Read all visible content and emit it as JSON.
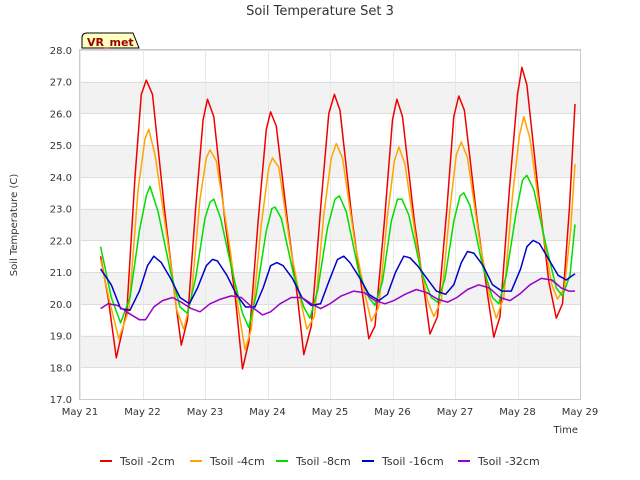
{
  "chart_data": {
    "type": "line",
    "title": "Soil Temperature Set 3",
    "xlabel": "Time",
    "ylabel": "Soil Temperature (C)",
    "badge": "VR_met",
    "ylim": [
      17.0,
      28.0
    ],
    "xlim": [
      "May 21",
      "May 29"
    ],
    "y_ticks": [
      "17.0",
      "18.0",
      "19.0",
      "20.0",
      "21.0",
      "22.0",
      "23.0",
      "24.0",
      "25.0",
      "26.0",
      "27.0",
      "28.0"
    ],
    "x_ticks": [
      "May 21",
      "May 22",
      "May 23",
      "May 24",
      "May 25",
      "May 26",
      "May 27",
      "May 28",
      "May 29"
    ],
    "grid": "horizontal alternating bands",
    "legend_position": "bottom",
    "x_unit": "days since May 21 00:00",
    "series": [
      {
        "name": "Tsoil -2cm",
        "color": "#ee0000",
        "points": [
          [
            0.33,
            21.5
          ],
          [
            0.45,
            20.2
          ],
          [
            0.58,
            18.3
          ],
          [
            0.75,
            19.8
          ],
          [
            0.88,
            24.0
          ],
          [
            0.98,
            26.6
          ],
          [
            1.06,
            27.05
          ],
          [
            1.16,
            26.6
          ],
          [
            1.35,
            23.0
          ],
          [
            1.5,
            20.5
          ],
          [
            1.62,
            18.7
          ],
          [
            1.72,
            19.5
          ],
          [
            1.85,
            23.0
          ],
          [
            1.97,
            25.8
          ],
          [
            2.04,
            26.45
          ],
          [
            2.14,
            25.9
          ],
          [
            2.32,
            22.6
          ],
          [
            2.48,
            20.3
          ],
          [
            2.6,
            17.95
          ],
          [
            2.7,
            18.8
          ],
          [
            2.85,
            22.6
          ],
          [
            2.98,
            25.5
          ],
          [
            3.05,
            26.05
          ],
          [
            3.14,
            25.6
          ],
          [
            3.32,
            22.6
          ],
          [
            3.48,
            20.2
          ],
          [
            3.58,
            18.4
          ],
          [
            3.7,
            19.3
          ],
          [
            3.85,
            23.0
          ],
          [
            3.98,
            26.0
          ],
          [
            4.07,
            26.6
          ],
          [
            4.16,
            26.1
          ],
          [
            4.35,
            22.7
          ],
          [
            4.52,
            20.3
          ],
          [
            4.62,
            18.9
          ],
          [
            4.72,
            19.3
          ],
          [
            4.87,
            22.6
          ],
          [
            5.0,
            25.8
          ],
          [
            5.07,
            26.45
          ],
          [
            5.16,
            25.9
          ],
          [
            5.35,
            22.6
          ],
          [
            5.5,
            20.5
          ],
          [
            5.6,
            19.05
          ],
          [
            5.72,
            19.6
          ],
          [
            5.87,
            23.0
          ],
          [
            5.98,
            25.9
          ],
          [
            6.06,
            26.55
          ],
          [
            6.15,
            26.1
          ],
          [
            6.35,
            22.7
          ],
          [
            6.52,
            20.3
          ],
          [
            6.62,
            18.95
          ],
          [
            6.72,
            19.6
          ],
          [
            6.87,
            23.6
          ],
          [
            7.0,
            26.6
          ],
          [
            7.07,
            27.45
          ],
          [
            7.15,
            26.9
          ],
          [
            7.33,
            23.6
          ],
          [
            7.5,
            20.7
          ],
          [
            7.62,
            19.55
          ],
          [
            7.72,
            20.0
          ],
          [
            7.83,
            23.0
          ],
          [
            7.92,
            26.3
          ]
        ]
      },
      {
        "name": "Tsoil -4cm",
        "color": "#ffa500",
        "points": [
          [
            0.33,
            21.4
          ],
          [
            0.47,
            20.1
          ],
          [
            0.62,
            18.9
          ],
          [
            0.78,
            19.8
          ],
          [
            0.93,
            23.6
          ],
          [
            1.04,
            25.2
          ],
          [
            1.1,
            25.5
          ],
          [
            1.2,
            24.7
          ],
          [
            1.4,
            22.0
          ],
          [
            1.55,
            19.8
          ],
          [
            1.66,
            19.2
          ],
          [
            1.78,
            20.2
          ],
          [
            1.92,
            23.3
          ],
          [
            2.02,
            24.6
          ],
          [
            2.08,
            24.85
          ],
          [
            2.18,
            24.5
          ],
          [
            2.38,
            22.0
          ],
          [
            2.52,
            20.0
          ],
          [
            2.64,
            18.55
          ],
          [
            2.74,
            19.2
          ],
          [
            2.9,
            22.5
          ],
          [
            3.02,
            24.3
          ],
          [
            3.08,
            24.6
          ],
          [
            3.18,
            24.3
          ],
          [
            3.38,
            21.6
          ],
          [
            3.53,
            20.1
          ],
          [
            3.63,
            19.2
          ],
          [
            3.75,
            19.6
          ],
          [
            3.9,
            22.8
          ],
          [
            4.02,
            24.6
          ],
          [
            4.1,
            25.05
          ],
          [
            4.2,
            24.6
          ],
          [
            4.4,
            21.9
          ],
          [
            4.56,
            20.3
          ],
          [
            4.66,
            19.45
          ],
          [
            4.78,
            19.9
          ],
          [
            4.92,
            22.8
          ],
          [
            5.03,
            24.5
          ],
          [
            5.1,
            24.95
          ],
          [
            5.2,
            24.4
          ],
          [
            5.4,
            21.7
          ],
          [
            5.56,
            20.1
          ],
          [
            5.66,
            19.6
          ],
          [
            5.78,
            20.1
          ],
          [
            5.92,
            23.0
          ],
          [
            6.02,
            24.7
          ],
          [
            6.1,
            25.1
          ],
          [
            6.2,
            24.6
          ],
          [
            6.4,
            21.9
          ],
          [
            6.56,
            20.2
          ],
          [
            6.66,
            19.55
          ],
          [
            6.78,
            20.2
          ],
          [
            6.92,
            23.4
          ],
          [
            7.03,
            25.3
          ],
          [
            7.1,
            25.9
          ],
          [
            7.2,
            25.2
          ],
          [
            7.4,
            22.3
          ],
          [
            7.55,
            20.6
          ],
          [
            7.64,
            20.15
          ],
          [
            7.75,
            20.5
          ],
          [
            7.85,
            22.3
          ],
          [
            7.92,
            24.4
          ]
        ]
      },
      {
        "name": "Tsoil -8cm",
        "color": "#00dd00",
        "points": [
          [
            0.33,
            21.8
          ],
          [
            0.5,
            20.2
          ],
          [
            0.65,
            19.4
          ],
          [
            0.8,
            20.2
          ],
          [
            0.95,
            22.3
          ],
          [
            1.06,
            23.4
          ],
          [
            1.12,
            23.7
          ],
          [
            1.25,
            22.9
          ],
          [
            1.45,
            21.0
          ],
          [
            1.6,
            19.9
          ],
          [
            1.72,
            19.7
          ],
          [
            1.85,
            20.8
          ],
          [
            2.0,
            22.7
          ],
          [
            2.08,
            23.2
          ],
          [
            2.14,
            23.3
          ],
          [
            2.25,
            22.7
          ],
          [
            2.45,
            20.9
          ],
          [
            2.6,
            19.7
          ],
          [
            2.7,
            19.25
          ],
          [
            2.82,
            20.3
          ],
          [
            2.98,
            22.3
          ],
          [
            3.07,
            23.0
          ],
          [
            3.12,
            23.05
          ],
          [
            3.22,
            22.7
          ],
          [
            3.42,
            20.9
          ],
          [
            3.58,
            19.9
          ],
          [
            3.68,
            19.55
          ],
          [
            3.8,
            20.4
          ],
          [
            3.96,
            22.4
          ],
          [
            4.08,
            23.3
          ],
          [
            4.15,
            23.4
          ],
          [
            4.26,
            22.9
          ],
          [
            4.46,
            21.0
          ],
          [
            4.62,
            20.2
          ],
          [
            4.72,
            19.95
          ],
          [
            4.84,
            20.7
          ],
          [
            4.98,
            22.6
          ],
          [
            5.08,
            23.3
          ],
          [
            5.15,
            23.3
          ],
          [
            5.26,
            22.8
          ],
          [
            5.46,
            21.0
          ],
          [
            5.62,
            20.2
          ],
          [
            5.72,
            20.05
          ],
          [
            5.84,
            20.8
          ],
          [
            5.98,
            22.6
          ],
          [
            6.08,
            23.4
          ],
          [
            6.14,
            23.5
          ],
          [
            6.24,
            23.1
          ],
          [
            6.44,
            21.2
          ],
          [
            6.6,
            20.2
          ],
          [
            6.7,
            20.0
          ],
          [
            6.82,
            20.9
          ],
          [
            6.98,
            22.9
          ],
          [
            7.08,
            23.9
          ],
          [
            7.15,
            24.05
          ],
          [
            7.26,
            23.6
          ],
          [
            7.46,
            21.8
          ],
          [
            7.62,
            20.5
          ],
          [
            7.72,
            20.25
          ],
          [
            7.84,
            20.9
          ],
          [
            7.92,
            22.5
          ]
        ]
      },
      {
        "name": "Tsoil -16cm",
        "color": "#0000cc",
        "points": [
          [
            0.33,
            21.1
          ],
          [
            0.5,
            20.6
          ],
          [
            0.65,
            19.85
          ],
          [
            0.8,
            19.8
          ],
          [
            0.95,
            20.4
          ],
          [
            1.08,
            21.2
          ],
          [
            1.18,
            21.5
          ],
          [
            1.3,
            21.3
          ],
          [
            1.45,
            20.8
          ],
          [
            1.6,
            20.2
          ],
          [
            1.75,
            20.0
          ],
          [
            1.88,
            20.5
          ],
          [
            2.02,
            21.2
          ],
          [
            2.12,
            21.4
          ],
          [
            2.2,
            21.35
          ],
          [
            2.35,
            20.9
          ],
          [
            2.5,
            20.3
          ],
          [
            2.65,
            19.9
          ],
          [
            2.8,
            19.9
          ],
          [
            2.93,
            20.5
          ],
          [
            3.05,
            21.2
          ],
          [
            3.15,
            21.3
          ],
          [
            3.25,
            21.2
          ],
          [
            3.4,
            20.8
          ],
          [
            3.55,
            20.2
          ],
          [
            3.7,
            19.95
          ],
          [
            3.85,
            20.0
          ],
          [
            3.98,
            20.7
          ],
          [
            4.12,
            21.4
          ],
          [
            4.22,
            21.5
          ],
          [
            4.32,
            21.3
          ],
          [
            4.48,
            20.8
          ],
          [
            4.62,
            20.3
          ],
          [
            4.78,
            20.1
          ],
          [
            4.92,
            20.3
          ],
          [
            5.05,
            21.0
          ],
          [
            5.18,
            21.5
          ],
          [
            5.28,
            21.45
          ],
          [
            5.4,
            21.2
          ],
          [
            5.55,
            20.8
          ],
          [
            5.7,
            20.4
          ],
          [
            5.85,
            20.3
          ],
          [
            5.98,
            20.6
          ],
          [
            6.1,
            21.3
          ],
          [
            6.2,
            21.65
          ],
          [
            6.3,
            21.6
          ],
          [
            6.45,
            21.2
          ],
          [
            6.6,
            20.6
          ],
          [
            6.75,
            20.4
          ],
          [
            6.9,
            20.4
          ],
          [
            7.05,
            21.1
          ],
          [
            7.15,
            21.8
          ],
          [
            7.25,
            22.0
          ],
          [
            7.35,
            21.9
          ],
          [
            7.5,
            21.4
          ],
          [
            7.65,
            20.9
          ],
          [
            7.78,
            20.75
          ],
          [
            7.92,
            20.95
          ]
        ]
      },
      {
        "name": "Tsoil -32cm",
        "color": "#9900cc",
        "points": [
          [
            0.33,
            19.85
          ],
          [
            0.45,
            20.0
          ],
          [
            0.6,
            19.95
          ],
          [
            0.78,
            19.7
          ],
          [
            0.95,
            19.5
          ],
          [
            1.05,
            19.5
          ],
          [
            1.18,
            19.9
          ],
          [
            1.32,
            20.1
          ],
          [
            1.48,
            20.2
          ],
          [
            1.62,
            20.05
          ],
          [
            1.78,
            19.85
          ],
          [
            1.92,
            19.75
          ],
          [
            2.08,
            20.0
          ],
          [
            2.25,
            20.15
          ],
          [
            2.42,
            20.25
          ],
          [
            2.58,
            20.2
          ],
          [
            2.75,
            19.9
          ],
          [
            2.92,
            19.65
          ],
          [
            3.05,
            19.75
          ],
          [
            3.2,
            20.0
          ],
          [
            3.38,
            20.2
          ],
          [
            3.55,
            20.2
          ],
          [
            3.7,
            20.0
          ],
          [
            3.85,
            19.85
          ],
          [
            4.0,
            20.0
          ],
          [
            4.18,
            20.25
          ],
          [
            4.38,
            20.4
          ],
          [
            4.55,
            20.35
          ],
          [
            4.72,
            20.1
          ],
          [
            4.88,
            20.0
          ],
          [
            5.02,
            20.1
          ],
          [
            5.2,
            20.3
          ],
          [
            5.38,
            20.45
          ],
          [
            5.55,
            20.35
          ],
          [
            5.72,
            20.15
          ],
          [
            5.88,
            20.05
          ],
          [
            6.03,
            20.2
          ],
          [
            6.2,
            20.45
          ],
          [
            6.38,
            20.6
          ],
          [
            6.55,
            20.5
          ],
          [
            6.72,
            20.2
          ],
          [
            6.88,
            20.1
          ],
          [
            7.03,
            20.3
          ],
          [
            7.2,
            20.6
          ],
          [
            7.38,
            20.8
          ],
          [
            7.55,
            20.75
          ],
          [
            7.7,
            20.5
          ],
          [
            7.82,
            20.4
          ],
          [
            7.92,
            20.4
          ]
        ]
      }
    ]
  }
}
